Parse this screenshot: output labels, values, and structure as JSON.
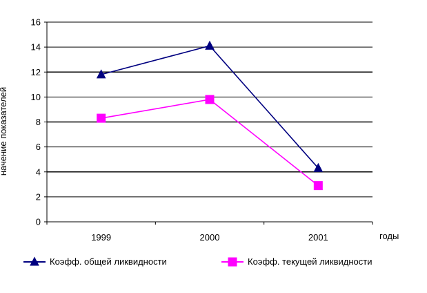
{
  "chart_data": {
    "type": "line",
    "title": "",
    "xlabel": "годы",
    "ylabel": "начение показателей",
    "categories": [
      "1999",
      "2000",
      "2001"
    ],
    "ylim": [
      0,
      16
    ],
    "yticks": [
      0,
      2,
      4,
      6,
      8,
      10,
      12,
      14,
      16
    ],
    "grid": true,
    "legend_position": "bottom",
    "series": [
      {
        "name": "Коэфф. общей ликвидности",
        "values": [
          11.8,
          14.1,
          4.3
        ],
        "color": "#000080",
        "marker": "triangle"
      },
      {
        "name": "Коэфф. текущей ликвидности",
        "values": [
          8.3,
          9.8,
          2.9
        ],
        "color": "#ff00ff",
        "marker": "square"
      }
    ]
  }
}
